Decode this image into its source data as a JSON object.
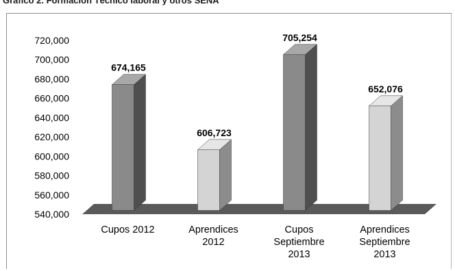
{
  "page": {
    "title": "Gráfico 2. Formación Técnico laboral y otros SENA"
  },
  "chart_data": {
    "type": "bar",
    "style": "3d-column",
    "title": "",
    "xlabel": "",
    "ylabel": "",
    "ylim": [
      540000,
      720000
    ],
    "ytick_step": 20000,
    "ytick_labels": [
      "540,000",
      "560,000",
      "580,000",
      "600,000",
      "620,000",
      "640,000",
      "660,000",
      "680,000",
      "700,000",
      "720,000"
    ],
    "grid": false,
    "legend": "none",
    "categories": [
      [
        "Cupos 2012"
      ],
      [
        "Aprendices",
        "2012"
      ],
      [
        "Cupos",
        "Septiembre",
        "2013"
      ],
      [
        "Aprendices",
        "Septiembre",
        "2013"
      ]
    ],
    "values": [
      674165,
      606723,
      705254,
      652076
    ],
    "data_labels": [
      "674,165",
      "606,723",
      "705,254",
      "652,076"
    ],
    "colors": {
      "cupos_front": "#8a8a8a",
      "cupos_side": "#4f4f4f",
      "cupos_top": "#a8a8a8",
      "aprendices_front": "#d4d4d4",
      "aprendices_side": "#8c8c8c",
      "aprendices_top": "#e6e6e6",
      "floor": "#5a5a5a"
    },
    "bar_color_keys": [
      "cupos",
      "aprendices",
      "cupos",
      "aprendices"
    ]
  }
}
